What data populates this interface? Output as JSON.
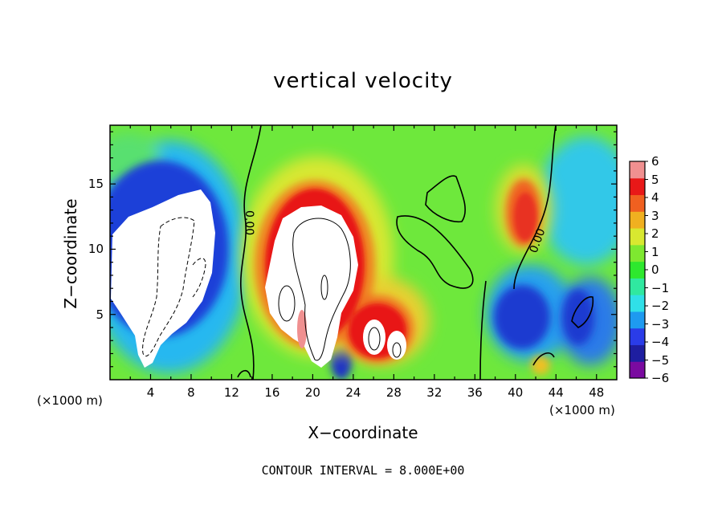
{
  "chart_data": {
    "type": "heatmap",
    "title": "vertical velocity",
    "xlabel": "X−coordinate",
    "ylabel": "Z−coordinate",
    "x_unit_left": "(×1000 m)",
    "x_unit_right": "(×1000 m)",
    "xlim": [
      0,
      50
    ],
    "ylim": [
      0,
      19.5
    ],
    "x_ticks": [
      4,
      8,
      12,
      16,
      20,
      24,
      28,
      32,
      36,
      40,
      44,
      48
    ],
    "x_tick_labels": [
      "4",
      "8",
      "12",
      "16",
      "20",
      "24",
      "28",
      "32",
      "36",
      "40",
      "44",
      "48"
    ],
    "y_ticks": [
      5,
      10,
      15
    ],
    "y_tick_labels": [
      "5",
      "10",
      "15"
    ],
    "colorbar": {
      "min": -6,
      "max": 6,
      "ticks": [
        "6",
        "5",
        "4",
        "3",
        "2",
        "1",
        "0",
        "−1",
        "−2",
        "−3",
        "−4",
        "−5",
        "−6"
      ],
      "colors": [
        "#7a0aa0",
        "#1e1ea0",
        "#2a3ce8",
        "#1e9af0",
        "#30e0e8",
        "#30e8a0",
        "#2ee82e",
        "#7ee830",
        "#d8e830",
        "#f0b020",
        "#f06020",
        "#e81818",
        "#f09090"
      ]
    },
    "contour_labels": [
      "0.00",
      "0.00"
    ],
    "contour_note": "CONTOUR INTERVAL = 8.000E+00",
    "grid": false
  }
}
